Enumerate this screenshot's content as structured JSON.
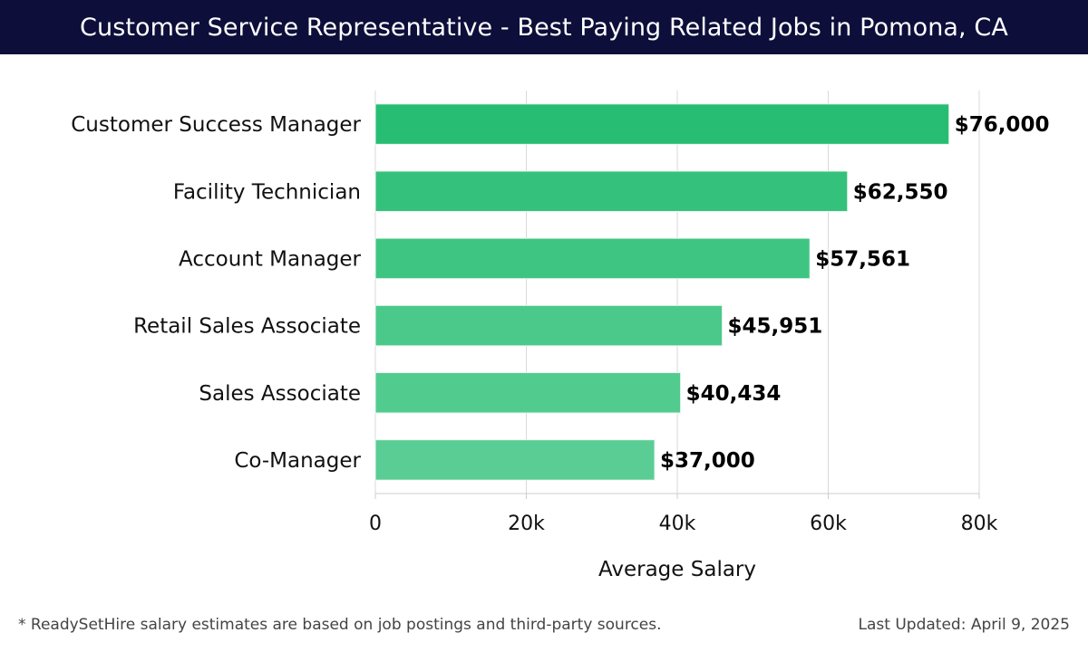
{
  "header": {
    "title": "Customer Service Representative - Best Paying Related Jobs in Pomona, CA"
  },
  "chart_data": {
    "type": "bar",
    "orientation": "horizontal",
    "categories": [
      "Customer Success Manager",
      "Facility Technician",
      "Account Manager",
      "Retail Sales Associate",
      "Sales Associate",
      "Co-Manager"
    ],
    "values": [
      76000,
      62550,
      57561,
      45951,
      40434,
      37000
    ],
    "value_labels": [
      "$76,000",
      "$62,550",
      "$57,561",
      "$45,951",
      "$40,434",
      "$37,000"
    ],
    "xlabel": "Average Salary",
    "ylabel": "",
    "xlim": [
      0,
      80000
    ],
    "xticks": [
      0,
      20000,
      40000,
      60000,
      80000
    ],
    "xtick_labels": [
      "0",
      "20k",
      "40k",
      "60k",
      "80k"
    ],
    "grid": true,
    "bar_colors": [
      "#27bd72",
      "#34c17b",
      "#3ec582",
      "#4bc98a",
      "#52cb8f",
      "#5acd94"
    ]
  },
  "footer": {
    "note": "* ReadySetHire salary estimates are based on job postings and third-party sources.",
    "updated": "Last Updated: April 9, 2025"
  }
}
